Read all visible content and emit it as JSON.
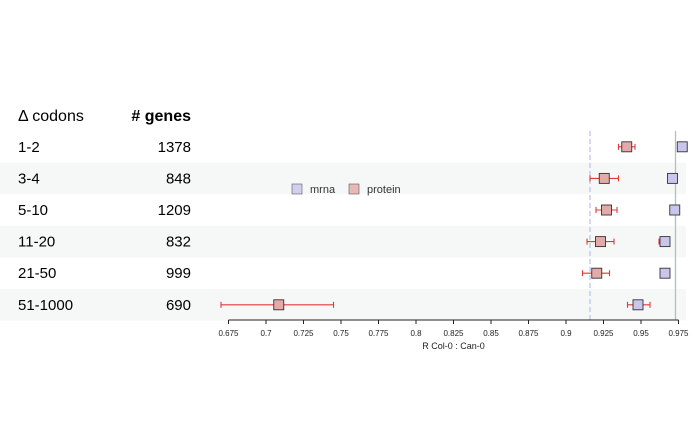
{
  "table": {
    "headers": {
      "codons": "Δ codons",
      "genes": "# genes"
    },
    "rows": [
      {
        "codons": "1-2",
        "genes": "1378"
      },
      {
        "codons": "3-4",
        "genes": "848"
      },
      {
        "codons": "5-10",
        "genes": "1209"
      },
      {
        "codons": "11-20",
        "genes": "832"
      },
      {
        "codons": "21-50",
        "genes": "999"
      },
      {
        "codons": "51-1000",
        "genes": "690"
      }
    ]
  },
  "colors": {
    "mrna_fill": "#c9c5ec",
    "protein_fill": "#e3aaa9",
    "error_bar": "#e0393b",
    "marker_stroke": "#333333",
    "row_stripe": "#f6f8f8",
    "dashed_ref": "#bcc4f0",
    "solid_ref": "#b8bcbc",
    "axis": "#222222"
  },
  "chart_data": {
    "type": "scatter",
    "categories": [
      "1-2",
      "3-4",
      "5-10",
      "11-20",
      "21-50",
      "51-1000"
    ],
    "xlabel": "R Col-0 : Can-0",
    "xlim": [
      0.67,
      0.98
    ],
    "xticks": [
      0.675,
      0.7,
      0.725,
      0.75,
      0.775,
      0.8,
      0.825,
      0.85,
      0.875,
      0.9,
      0.925,
      0.95,
      0.975
    ],
    "xtick_labels": [
      "0.675",
      "0.7",
      "0.725",
      "0.75",
      "0.775",
      "0.8",
      "0.825",
      "0.85",
      "0.875",
      "0.9",
      "0.925",
      "0.95",
      "0.975"
    ],
    "reference_lines": {
      "dashed": 0.916,
      "solid": 0.973
    },
    "legend": {
      "position": "middle-left"
    },
    "series": [
      {
        "name": "mrna",
        "values": [
          0.9775,
          0.971,
          0.9725,
          0.966,
          0.966,
          0.948
        ],
        "ci_low": [
          0.977,
          0.969,
          0.971,
          0.962,
          0.963,
          0.941
        ],
        "ci_high": [
          0.978,
          0.973,
          0.974,
          0.969,
          0.969,
          0.956
        ]
      },
      {
        "name": "protein",
        "values": [
          0.9405,
          0.9255,
          0.927,
          0.923,
          0.9205,
          0.7085
        ],
        "ci_low": [
          0.935,
          0.916,
          0.92,
          0.914,
          0.911,
          0.67
        ],
        "ci_high": [
          0.946,
          0.935,
          0.934,
          0.932,
          0.929,
          0.745
        ]
      }
    ]
  }
}
